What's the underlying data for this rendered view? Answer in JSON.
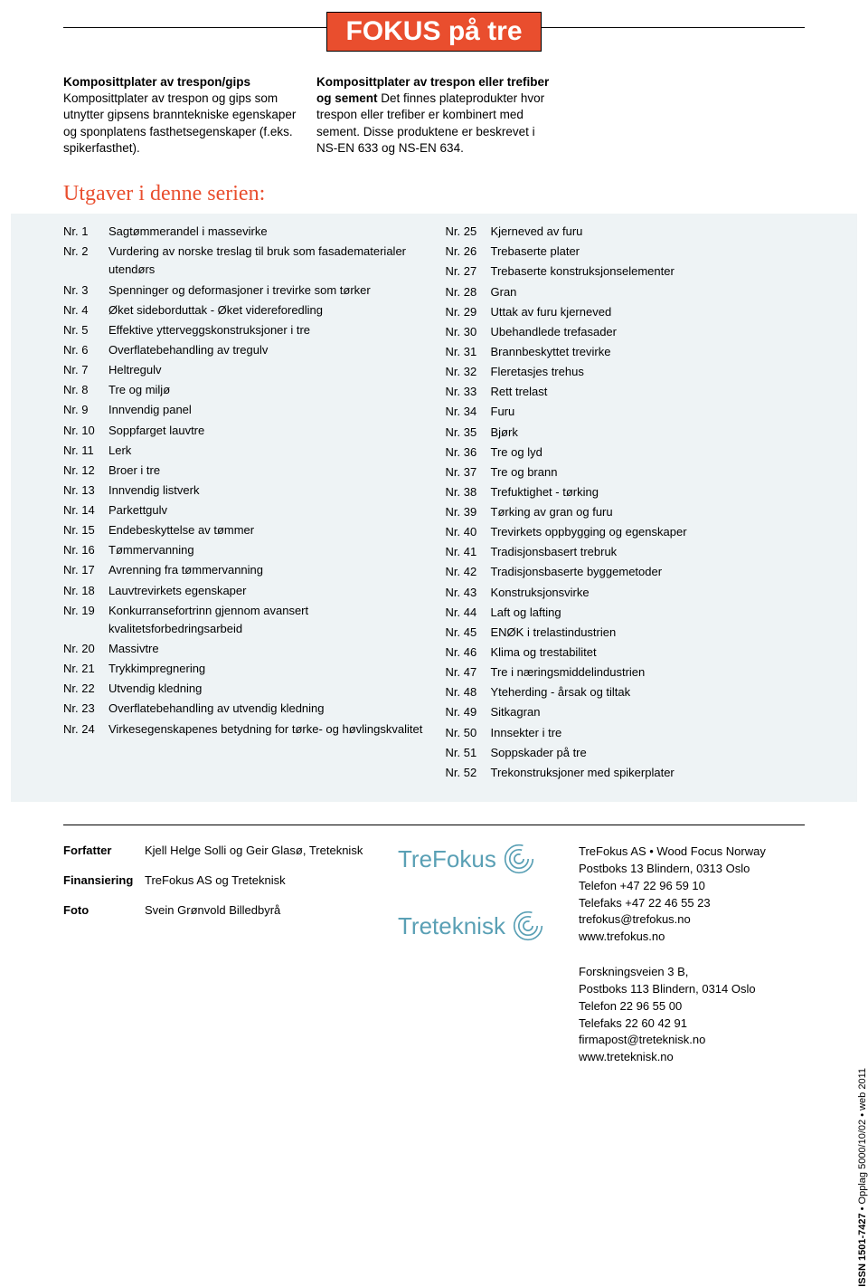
{
  "banner": "FOKUS på tre",
  "intro": {
    "col1": {
      "lead": "Komposittplater av trespon/gips",
      "body": "Komposittplater av trespon og gips som utnytter gipsens branntekniske egenskaper og sponplatens fasthetsegenskaper (f.eks. spikerfasthet)."
    },
    "col2": {
      "lead": "Komposittplater av trespon eller trefiber og sement",
      "body": "Det finnes plateprodukter hvor trespon eller trefiber er kombinert med sement. Disse produktene er beskrevet i NS-EN 633 og NS-EN 634."
    }
  },
  "section_title": "Utgaver i denne serien:",
  "series_left": [
    {
      "nr": "Nr. 1",
      "title": "Sagtømmerandel i massevirke"
    },
    {
      "nr": "Nr. 2",
      "title": "Vurdering av norske treslag til bruk som fasadematerialer utendørs"
    },
    {
      "nr": "Nr. 3",
      "title": "Spenninger og deformasjoner i trevirke som tørker"
    },
    {
      "nr": "Nr. 4",
      "title": "Øket sideborduttak - Øket videreforedling"
    },
    {
      "nr": "Nr. 5",
      "title": "Effektive ytterveggskonstruksjoner i tre"
    },
    {
      "nr": "Nr. 6",
      "title": "Overflatebehandling av tregulv"
    },
    {
      "nr": "Nr. 7",
      "title": "Heltregulv"
    },
    {
      "nr": "Nr. 8",
      "title": "Tre og miljø"
    },
    {
      "nr": "Nr. 9",
      "title": "Innvendig panel"
    },
    {
      "nr": "Nr. 10",
      "title": "Soppfarget lauvtre"
    },
    {
      "nr": "Nr. 11",
      "title": "Lerk"
    },
    {
      "nr": "Nr. 12",
      "title": "Broer i tre"
    },
    {
      "nr": "Nr. 13",
      "title": "Innvendig listverk"
    },
    {
      "nr": "Nr. 14",
      "title": "Parkettgulv"
    },
    {
      "nr": "Nr. 15",
      "title": "Endebeskyttelse av tømmer"
    },
    {
      "nr": "Nr. 16",
      "title": "Tømmervanning"
    },
    {
      "nr": "Nr. 17",
      "title": "Avrenning fra tømmervanning"
    },
    {
      "nr": "Nr. 18",
      "title": "Lauvtrevirkets egenskaper"
    },
    {
      "nr": "Nr. 19",
      "title": "Konkurransefortrinn gjennom avansert kvalitetsforbedringsarbeid"
    },
    {
      "nr": "Nr. 20",
      "title": "Massivtre"
    },
    {
      "nr": "Nr. 21",
      "title": "Trykkimpregnering"
    },
    {
      "nr": "Nr. 22",
      "title": "Utvendig kledning"
    },
    {
      "nr": "Nr. 23",
      "title": "Overflatebehandling av utvendig kledning"
    },
    {
      "nr": "Nr. 24",
      "title": "Virkesegenskapenes betydning for tørke- og høvlingskvalitet"
    }
  ],
  "series_right": [
    {
      "nr": "Nr. 25",
      "title": "Kjerneved av furu"
    },
    {
      "nr": "Nr. 26",
      "title": "Trebaserte plater"
    },
    {
      "nr": "Nr. 27",
      "title": "Trebaserte konstruksjonselementer"
    },
    {
      "nr": "Nr. 28",
      "title": "Gran"
    },
    {
      "nr": "Nr. 29",
      "title": "Uttak av furu kjerneved"
    },
    {
      "nr": "Nr. 30",
      "title": "Ubehandlede trefasader"
    },
    {
      "nr": "Nr. 31",
      "title": "Brannbeskyttet trevirke"
    },
    {
      "nr": "Nr. 32",
      "title": "Fleretasjes trehus"
    },
    {
      "nr": "Nr. 33",
      "title": "Rett trelast"
    },
    {
      "nr": "Nr. 34",
      "title": "Furu"
    },
    {
      "nr": "Nr. 35",
      "title": "Bjørk"
    },
    {
      "nr": "Nr. 36",
      "title": "Tre og lyd"
    },
    {
      "nr": "Nr. 37",
      "title": "Tre og brann"
    },
    {
      "nr": "Nr. 38",
      "title": "Trefuktighet - tørking"
    },
    {
      "nr": "Nr. 39",
      "title": "Tørking av gran og furu"
    },
    {
      "nr": "Nr. 40",
      "title": "Trevirkets oppbygging og egenskaper"
    },
    {
      "nr": "Nr. 41",
      "title": "Tradisjonsbasert trebruk"
    },
    {
      "nr": "Nr. 42",
      "title": "Tradisjonsbaserte byggemetoder"
    },
    {
      "nr": "Nr. 43",
      "title": "Konstruksjonsvirke"
    },
    {
      "nr": "Nr. 44",
      "title": "Laft og lafting"
    },
    {
      "nr": "Nr. 45",
      "title": "ENØK i trelastindustrien"
    },
    {
      "nr": "Nr. 46",
      "title": "Klima og trestabilitet"
    },
    {
      "nr": "Nr. 47",
      "title": "Tre i næringsmiddelindustrien"
    },
    {
      "nr": "Nr. 48",
      "title": "Yteherding - årsak og tiltak"
    },
    {
      "nr": "Nr. 49",
      "title": "Sitkagran"
    },
    {
      "nr": "Nr. 50",
      "title": "Innsekter i tre"
    },
    {
      "nr": "Nr. 51",
      "title": "Soppskader på tre"
    },
    {
      "nr": "Nr. 52",
      "title": "Trekonstruksjoner med spikerplater"
    }
  ],
  "credits": {
    "forfatter_label": "Forfatter",
    "forfatter": "Kjell Helge Solli og Geir Glasø, Treteknisk",
    "finansiering_label": "Finansiering",
    "finansiering": "TreFokus AS og Treteknisk",
    "foto_label": "Foto",
    "foto": "Svein Grønvold Billedbyrå"
  },
  "logos": {
    "trefokus": "TreFokus",
    "treteknisk": "Treteknisk"
  },
  "contact": {
    "trefokus": {
      "line1": "TreFokus AS • Wood Focus Norway",
      "line2": "Postboks 13 Blindern, 0313 Oslo",
      "line3": "Telefon   +47 22 96 59 10",
      "line4": "Telefaks  +47 22 46 55 23",
      "line5": "trefokus@trefokus.no",
      "line6": "www.trefokus.no"
    },
    "treteknisk": {
      "line1": "Forskningsveien 3 B,",
      "line2": "Postboks 113 Blindern, 0314 Oslo",
      "line3": "Telefon   22 96 55 00",
      "line4": "Telefaks  22 60 42 91",
      "line5": "firmapost@treteknisk.no",
      "line6": "www.treteknisk.no"
    }
  },
  "side": {
    "issn": "ISSN 1501-7427",
    "rest": " • Opplag 5000/10/02 • web 2011"
  },
  "colors": {
    "accent": "#e94e2e",
    "panel_bg": "#eef3f5",
    "logo_color": "#5aa0b5"
  }
}
